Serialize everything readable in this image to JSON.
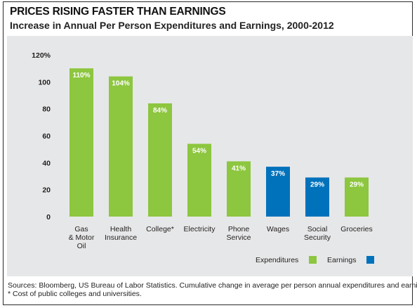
{
  "header": {
    "title": "PRICES RISING FASTER THAN EARNINGS",
    "subtitle": "Increase in Annual Per Person Expenditures and Earnings, 2000-2012"
  },
  "chart_data": {
    "type": "bar",
    "title": "PRICES RISING FASTER THAN EARNINGS",
    "subtitle": "Increase in Annual Per Person Expenditures and Earnings, 2000-2012",
    "categories": [
      [
        "Gas",
        "& Motor",
        "Oil"
      ],
      [
        "Health",
        "Insurance"
      ],
      [
        "College*"
      ],
      [
        "Electricity"
      ],
      [
        "Phone",
        "Service"
      ],
      [
        "Wages"
      ],
      [
        "Social",
        "Security"
      ],
      [
        "Groceries"
      ]
    ],
    "values": [
      110,
      104,
      84,
      54,
      41,
      37,
      29,
      29
    ],
    "value_labels": [
      "110%",
      "104%",
      "84%",
      "54%",
      "41%",
      "37%",
      "29%",
      "29%"
    ],
    "bar_series": [
      "Expenditures",
      "Expenditures",
      "Expenditures",
      "Expenditures",
      "Expenditures",
      "Earnings",
      "Earnings",
      "Expenditures"
    ],
    "series": [
      {
        "name": "Expenditures",
        "color": "#8dc63f"
      },
      {
        "name": "Earnings",
        "color": "#0072bc"
      }
    ],
    "ylim": [
      0,
      120
    ],
    "yticks": [
      0,
      20,
      40,
      60,
      80,
      100,
      120
    ],
    "ytick_labels": [
      "0",
      "20",
      "40",
      "60",
      "80",
      "100",
      "120%"
    ],
    "grid": false,
    "legend_position": "bottom-right"
  },
  "footer": {
    "sources": "Sources: Bloomberg, US Bureau of Labor Statistics. Cumulative change in average per person annual expenditures and earnings.",
    "note": "* Cost of public colleges and universities."
  }
}
